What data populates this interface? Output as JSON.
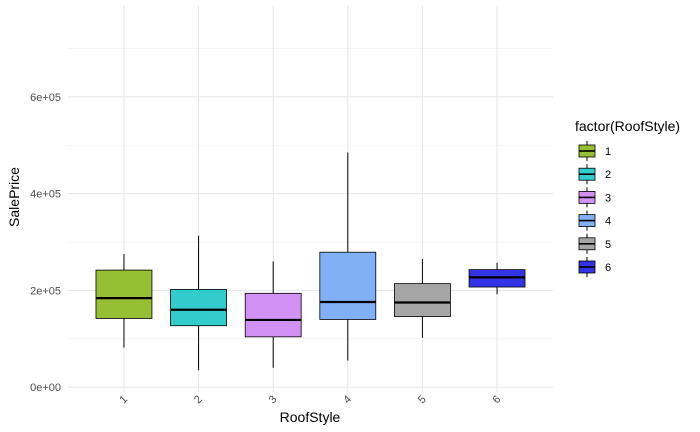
{
  "chart_data": {
    "type": "boxplot",
    "xlabel": "RoofStyle",
    "ylabel": "SalePrice",
    "categories": [
      "1",
      "2",
      "3",
      "4",
      "5",
      "6"
    ],
    "ylim": [
      -10000,
      790000
    ],
    "y_ticks": [
      0,
      200000,
      400000,
      600000
    ],
    "y_tick_labels": [
      "0e+00",
      "2e+05",
      "4e+05",
      "6e+05"
    ],
    "grid": true,
    "legend": {
      "title": "factor(RoofStyle)",
      "position": "right",
      "entries": [
        "1",
        "2",
        "3",
        "4",
        "5",
        "6"
      ]
    },
    "boxes": [
      {
        "category": "1",
        "min": 82000,
        "q1": 142000,
        "median": 184000,
        "q3": 242000,
        "max": 275000,
        "color": "#96bf33"
      },
      {
        "category": "2",
        "min": 35000,
        "q1": 127000,
        "median": 160000,
        "q3": 202000,
        "max": 313000,
        "color": "#33cccc"
      },
      {
        "category": "3",
        "min": 40000,
        "q1": 104000,
        "median": 139000,
        "q3": 194000,
        "max": 260000,
        "color": "#d291f5"
      },
      {
        "category": "4",
        "min": 55000,
        "q1": 140000,
        "median": 176000,
        "q3": 279000,
        "max": 485000,
        "color": "#80b1f7"
      },
      {
        "category": "5",
        "min": 102000,
        "q1": 146000,
        "median": 175000,
        "q3": 214000,
        "max": 265000,
        "color": "#a6a6a6"
      },
      {
        "category": "6",
        "min": 192000,
        "q1": 207000,
        "median": 227000,
        "q3": 243000,
        "max": 257000,
        "color": "#3333e6"
      }
    ]
  }
}
